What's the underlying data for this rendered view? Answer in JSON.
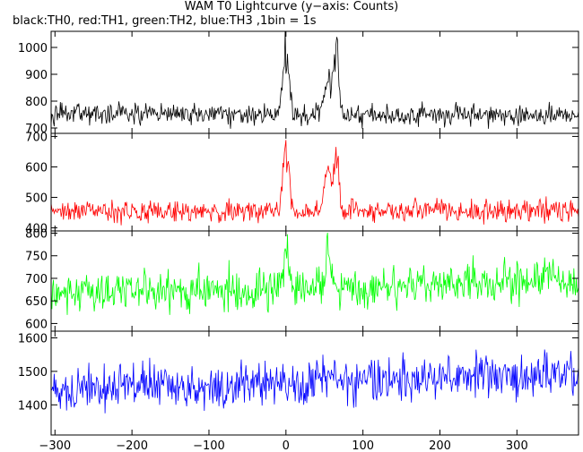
{
  "title": "WAM T0 Lightcurve (y−axis: Counts)",
  "subtitle": "black:TH0, red:TH1, green:TH2, blue:TH3 ,1bin = 1s",
  "chart_data": {
    "type": "line",
    "xlim": [
      -305,
      380
    ],
    "x_ticks": [
      -300,
      -200,
      -100,
      0,
      100,
      200,
      300
    ],
    "x_tick_labels": [
      "−300",
      "−200",
      "−100",
      "0",
      "100",
      "200",
      "300"
    ],
    "bin_seconds": 1,
    "x_start": -305,
    "x_end": 380,
    "series": [
      {
        "name": "TH0",
        "color": "#000000",
        "ylim": [
          680,
          1060
        ],
        "y_ticks": [
          700,
          800,
          900,
          1000
        ],
        "baseline": 750,
        "noise": 24,
        "features": [
          {
            "center": 0,
            "width": 4,
            "amplitude": 310
          },
          {
            "center": 55,
            "width": 6,
            "amplitude": 170
          },
          {
            "center": 66,
            "width": 3,
            "amplitude": 260
          }
        ]
      },
      {
        "name": "TH1",
        "color": "#ff0000",
        "ylim": [
          390,
          710
        ],
        "y_ticks": [
          400,
          500,
          600,
          700
        ],
        "baseline": 455,
        "noise": 22,
        "features": [
          {
            "center": 0,
            "width": 4,
            "amplitude": 240
          },
          {
            "center": 55,
            "width": 5,
            "amplitude": 170
          },
          {
            "center": 66,
            "width": 3,
            "amplitude": 230
          }
        ]
      },
      {
        "name": "TH2",
        "color": "#00ff00",
        "ylim": [
          583,
          805
        ],
        "y_ticks": [
          600,
          650,
          700,
          750,
          800
        ],
        "baseline": 665,
        "noise": 28,
        "trend_end": 30,
        "features": [
          {
            "center": 0,
            "width": 4,
            "amplitude": 100
          },
          {
            "center": 55,
            "width": 4,
            "amplitude": 100
          }
        ]
      },
      {
        "name": "TH3",
        "color": "#0000ff",
        "ylim": [
          1310,
          1620
        ],
        "y_ticks": [
          1400,
          1500,
          1600
        ],
        "baseline": 1445,
        "noise": 42,
        "trend_end": 45,
        "features": []
      }
    ]
  }
}
